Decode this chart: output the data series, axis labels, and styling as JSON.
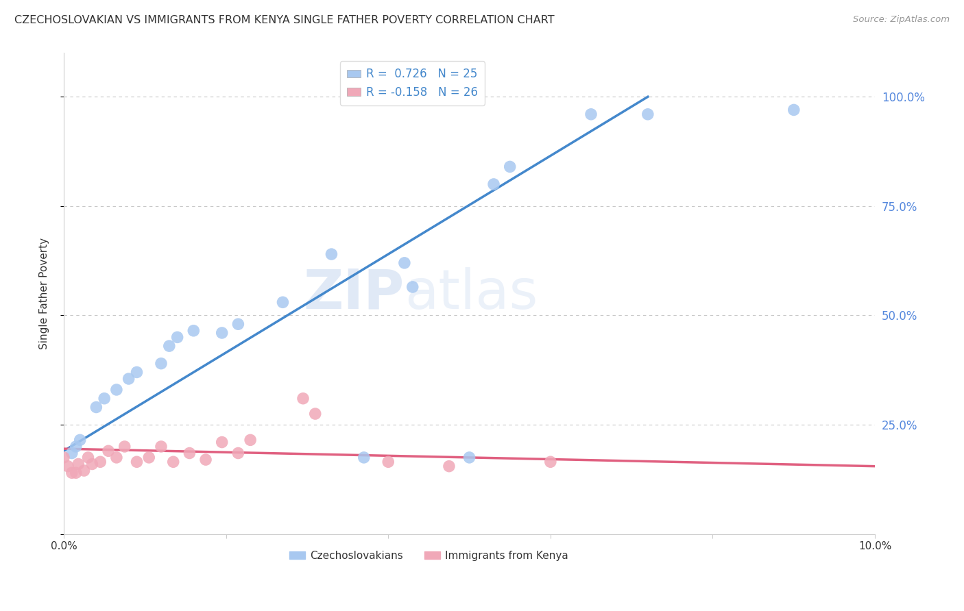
{
  "title": "CZECHOSLOVAKIAN VS IMMIGRANTS FROM KENYA SINGLE FATHER POVERTY CORRELATION CHART",
  "source": "Source: ZipAtlas.com",
  "ylabel": "Single Father Poverty",
  "background_color": "#ffffff",
  "grid_color": "#c8c8c8",
  "title_color": "#333333",
  "right_label_color": "#5588dd",
  "source_color": "#999999",
  "watermark_zip": "ZIP",
  "watermark_atlas": "atlas",
  "blue_color": "#a8c8f0",
  "pink_color": "#f0a8b8",
  "blue_line_color": "#4488cc",
  "pink_line_color": "#e06080",
  "blue_scatter": [
    [
      0.001,
      0.185
    ],
    [
      0.0015,
      0.2
    ],
    [
      0.002,
      0.215
    ],
    [
      0.004,
      0.29
    ],
    [
      0.005,
      0.31
    ],
    [
      0.0065,
      0.33
    ],
    [
      0.008,
      0.355
    ],
    [
      0.009,
      0.37
    ],
    [
      0.012,
      0.39
    ],
    [
      0.013,
      0.43
    ],
    [
      0.014,
      0.45
    ],
    [
      0.016,
      0.465
    ],
    [
      0.0195,
      0.46
    ],
    [
      0.0215,
      0.48
    ],
    [
      0.027,
      0.53
    ],
    [
      0.033,
      0.64
    ],
    [
      0.037,
      0.175
    ],
    [
      0.042,
      0.62
    ],
    [
      0.043,
      0.565
    ],
    [
      0.05,
      0.175
    ],
    [
      0.053,
      0.8
    ],
    [
      0.055,
      0.84
    ],
    [
      0.065,
      0.96
    ],
    [
      0.072,
      0.96
    ],
    [
      0.09,
      0.97
    ]
  ],
  "pink_scatter": [
    [
      0.0,
      0.175
    ],
    [
      0.0005,
      0.155
    ],
    [
      0.001,
      0.14
    ],
    [
      0.0015,
      0.14
    ],
    [
      0.0018,
      0.16
    ],
    [
      0.0025,
      0.145
    ],
    [
      0.003,
      0.175
    ],
    [
      0.0035,
      0.16
    ],
    [
      0.0045,
      0.165
    ],
    [
      0.0055,
      0.19
    ],
    [
      0.0065,
      0.175
    ],
    [
      0.0075,
      0.2
    ],
    [
      0.009,
      0.165
    ],
    [
      0.0105,
      0.175
    ],
    [
      0.012,
      0.2
    ],
    [
      0.0135,
      0.165
    ],
    [
      0.0155,
      0.185
    ],
    [
      0.0175,
      0.17
    ],
    [
      0.0195,
      0.21
    ],
    [
      0.0215,
      0.185
    ],
    [
      0.023,
      0.215
    ],
    [
      0.0295,
      0.31
    ],
    [
      0.031,
      0.275
    ],
    [
      0.04,
      0.165
    ],
    [
      0.0475,
      0.155
    ],
    [
      0.06,
      0.165
    ]
  ],
  "blue_line_x": [
    0.0,
    0.072
  ],
  "blue_line_y": [
    0.19,
    1.0
  ],
  "pink_line_x": [
    0.0,
    0.1
  ],
  "pink_line_y": [
    0.195,
    0.155
  ],
  "xlim": [
    0.0,
    0.1
  ],
  "ylim": [
    0.0,
    1.1
  ],
  "yticks": [
    0.0,
    0.25,
    0.5,
    0.75,
    1.0
  ],
  "right_ytick_labels": [
    "",
    "25.0%",
    "50.0%",
    "75.0%",
    "100.0%"
  ],
  "xtick_labels_show": [
    "0.0%",
    "",
    "",
    "",
    "",
    "10.0%"
  ],
  "xtick_vals": [
    0.0,
    0.02,
    0.04,
    0.06,
    0.08,
    0.1
  ],
  "legend_r1_label": "R =  0.726   N = 25",
  "legend_r2_label": "R = -0.158   N = 26",
  "legend_cat1": "Czechoslovakians",
  "legend_cat2": "Immigrants from Kenya"
}
